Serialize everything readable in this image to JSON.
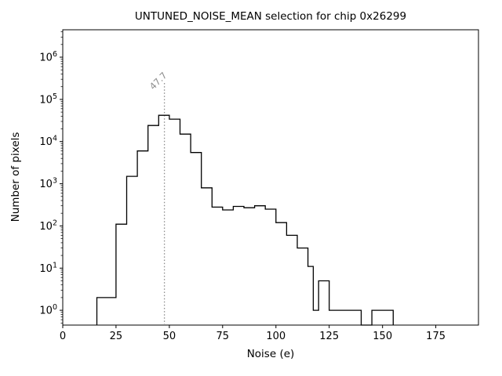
{
  "chart_data": {
    "type": "bar",
    "subtype": "step-histogram",
    "title": "UNTUNED_NOISE_MEAN selection for chip 0x26299",
    "xlabel": "Noise (e)",
    "ylabel": "Number of pixels",
    "xlim": [
      0,
      195
    ],
    "y_scale": "log",
    "ylim_exp": [
      -0.35,
      6.65
    ],
    "xticks": [
      0,
      25,
      50,
      75,
      100,
      125,
      150,
      175
    ],
    "ytick_exponents": [
      0,
      1,
      2,
      3,
      4,
      5,
      6
    ],
    "grid": false,
    "legend": "none",
    "line_color": "#000000",
    "background": "#ffffff",
    "step_points_format": "each entry [x, count]; count applies from x until next entry's x",
    "step_points": [
      [
        16,
        2
      ],
      [
        25,
        110
      ],
      [
        30,
        1500
      ],
      [
        35,
        6000
      ],
      [
        40,
        24000
      ],
      [
        45,
        42000
      ],
      [
        50,
        34000
      ],
      [
        55,
        15000
      ],
      [
        60,
        5500
      ],
      [
        65,
        800
      ],
      [
        70,
        280
      ],
      [
        75,
        240
      ],
      [
        80,
        290
      ],
      [
        85,
        270
      ],
      [
        90,
        300
      ],
      [
        95,
        250
      ],
      [
        100,
        120
      ],
      [
        105,
        60
      ],
      [
        110,
        30
      ],
      [
        115,
        11
      ],
      [
        117.5,
        1
      ],
      [
        120,
        5
      ],
      [
        125,
        1
      ],
      [
        140,
        0
      ],
      [
        145,
        1
      ],
      [
        155,
        0
      ]
    ],
    "vline": {
      "x": 47.7,
      "label": "47.7",
      "color": "#8c8c8c",
      "style": "dotted"
    }
  }
}
